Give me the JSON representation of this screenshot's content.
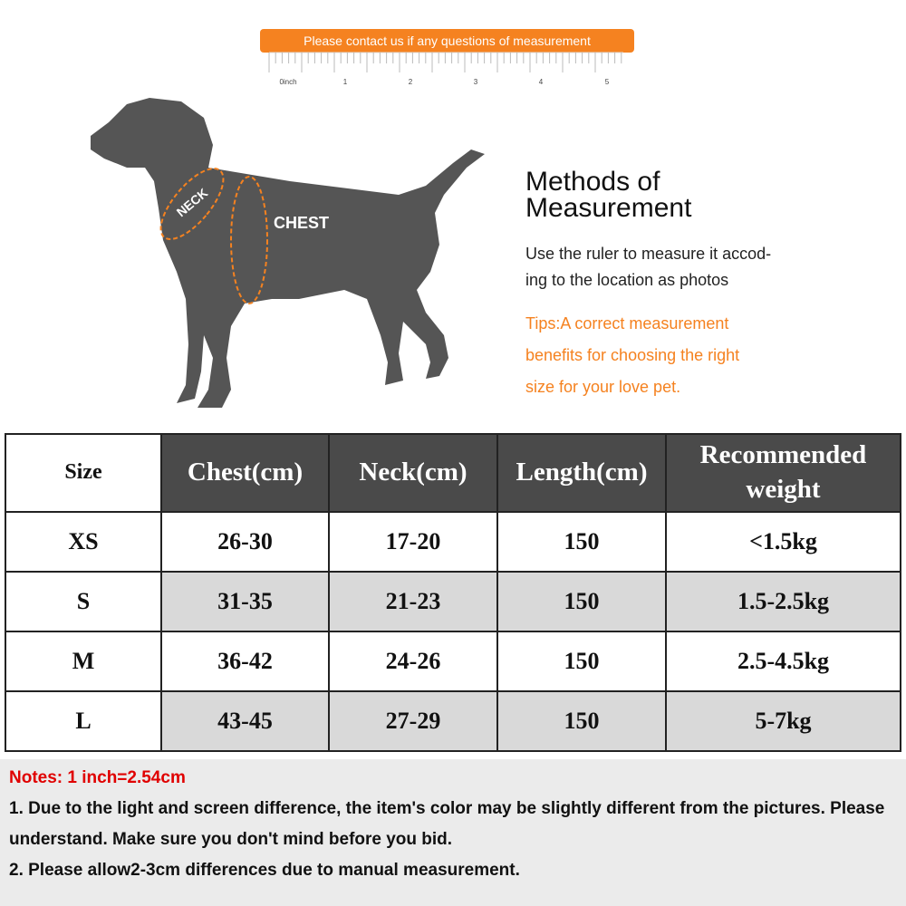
{
  "banner": "Please contact us if any questions of measurement",
  "ruler": [
    "0inch",
    "1",
    "2",
    "3",
    "4",
    "5"
  ],
  "dog": {
    "neck": "NECK",
    "chest": "CHEST"
  },
  "heading": [
    "Methods of",
    "Measurement"
  ],
  "description": [
    "Use the ruler to measure it accod-",
    "ing to the location as photos"
  ],
  "tips": [
    "Tips:A correct measurement",
    "benefits for choosing the right",
    "size for your love pet."
  ],
  "table": {
    "header": [
      "Size",
      "Chest(cm)",
      "Neck(cm)",
      "Length(cm)",
      "Recommended weight"
    ],
    "rows": [
      [
        "XS",
        "26-30",
        "17-20",
        "150",
        "<1.5kg"
      ],
      [
        "S",
        "31-35",
        "21-23",
        "150",
        "1.5-2.5kg"
      ],
      [
        "M",
        "36-42",
        "24-26",
        "150",
        "2.5-4.5kg"
      ],
      [
        "L",
        "43-45",
        "27-29",
        "150",
        "5-7kg"
      ]
    ]
  },
  "notes": {
    "title": "Notes: 1 inch=2.54cm",
    "items": [
      "1. Due to the light and screen difference, the item's color may be slightly different from the pictures. Please understand. Make sure you don't mind before you bid.",
      "2. Please allow2-3cm differences due to manual measurement."
    ]
  }
}
